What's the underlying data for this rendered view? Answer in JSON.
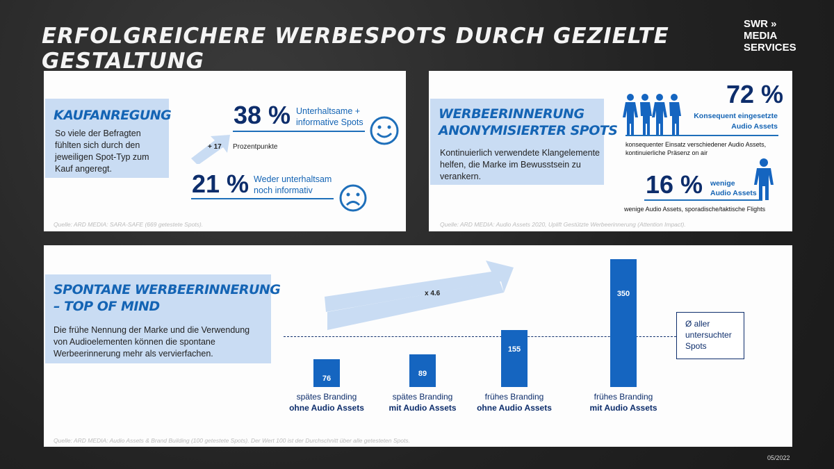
{
  "title": "Erfolgreichere Werbespots durch gezielte Gestaltung",
  "logo": {
    "line1": "SWR",
    "line2": "MEDIA",
    "line3": "SERVICES"
  },
  "colors": {
    "accent": "#1464b4",
    "dark": "#0d2d6b",
    "highlight": "#c9dcf3"
  },
  "panel1": {
    "heading": "Kaufanregung",
    "text": "So viele der Befragten fühlten sich durch den jeweiligen Spot-Typ zum Kauf angeregt.",
    "stat1": {
      "value": "38 %",
      "label1": "Unterhaltsame +",
      "label2": "informative Spots",
      "icon": "smiley-happy-icon"
    },
    "delta": {
      "value": "+ 17",
      "label": "Prozentpunkte"
    },
    "stat2": {
      "value": "21 %",
      "label1": "Weder unterhaltsam",
      "label2": "noch informativ",
      "icon": "smiley-sad-icon"
    },
    "source": "Quelle: ARD MEDIA: SARA-SAFE (669 getestete Spots)."
  },
  "panel2": {
    "heading1": "Werbeerinnerung",
    "heading2": "anonymisierter Spots",
    "text": "Kontinuierlich verwendete Klangelemente helfen, die Marke im Bewusstsein zu verankern.",
    "stat1": {
      "value": "72 %",
      "label1": "Konsequent eingesetzte",
      "label2": "Audio Assets",
      "desc1": "konsequenter Einsatz verschiedener Audio Assets,",
      "desc2": "kontinuierliche Präsenz on air"
    },
    "stat2": {
      "value": "16 %",
      "label1": "wenige",
      "label2": "Audio Assets",
      "desc": "wenige Audio Assets, sporadische/taktische Flights"
    },
    "source": "Quelle: ARD MEDIA: Audio Assets 2020, Uplift Gestützte Werbeerinnerung (Attention Impact)."
  },
  "panel3": {
    "heading1": "Spontane Werbeerinnerung",
    "heading2": "– Top of Mind",
    "text": "Die frühe Nennung der Marke und die Verwendung von Audioelementen können die spontane Werbeerinnerung mehr als vervierfachen.",
    "multiplier": "x 4.6",
    "average_label": "Ø aller untersuchter Spots",
    "source": "Quelle: ARD MEDIA: Audio Assets & Brand Building (100 getestete Spots). Der Wert 100 ist der Durchschnitt über alle getesteten Spots."
  },
  "chart_data": {
    "type": "bar",
    "categories": [
      [
        "spätes Branding",
        "ohne Audio Assets"
      ],
      [
        "spätes Branding",
        "mit Audio Assets"
      ],
      [
        "frühes Branding",
        "ohne Audio Assets"
      ],
      [
        "frühes Branding",
        "mit Audio Assets"
      ]
    ],
    "values": [
      76,
      89,
      155,
      350
    ],
    "labels": [
      "76",
      "89",
      "155",
      "350"
    ],
    "reference_line": 100,
    "grid": false
  },
  "date": "05/2022"
}
